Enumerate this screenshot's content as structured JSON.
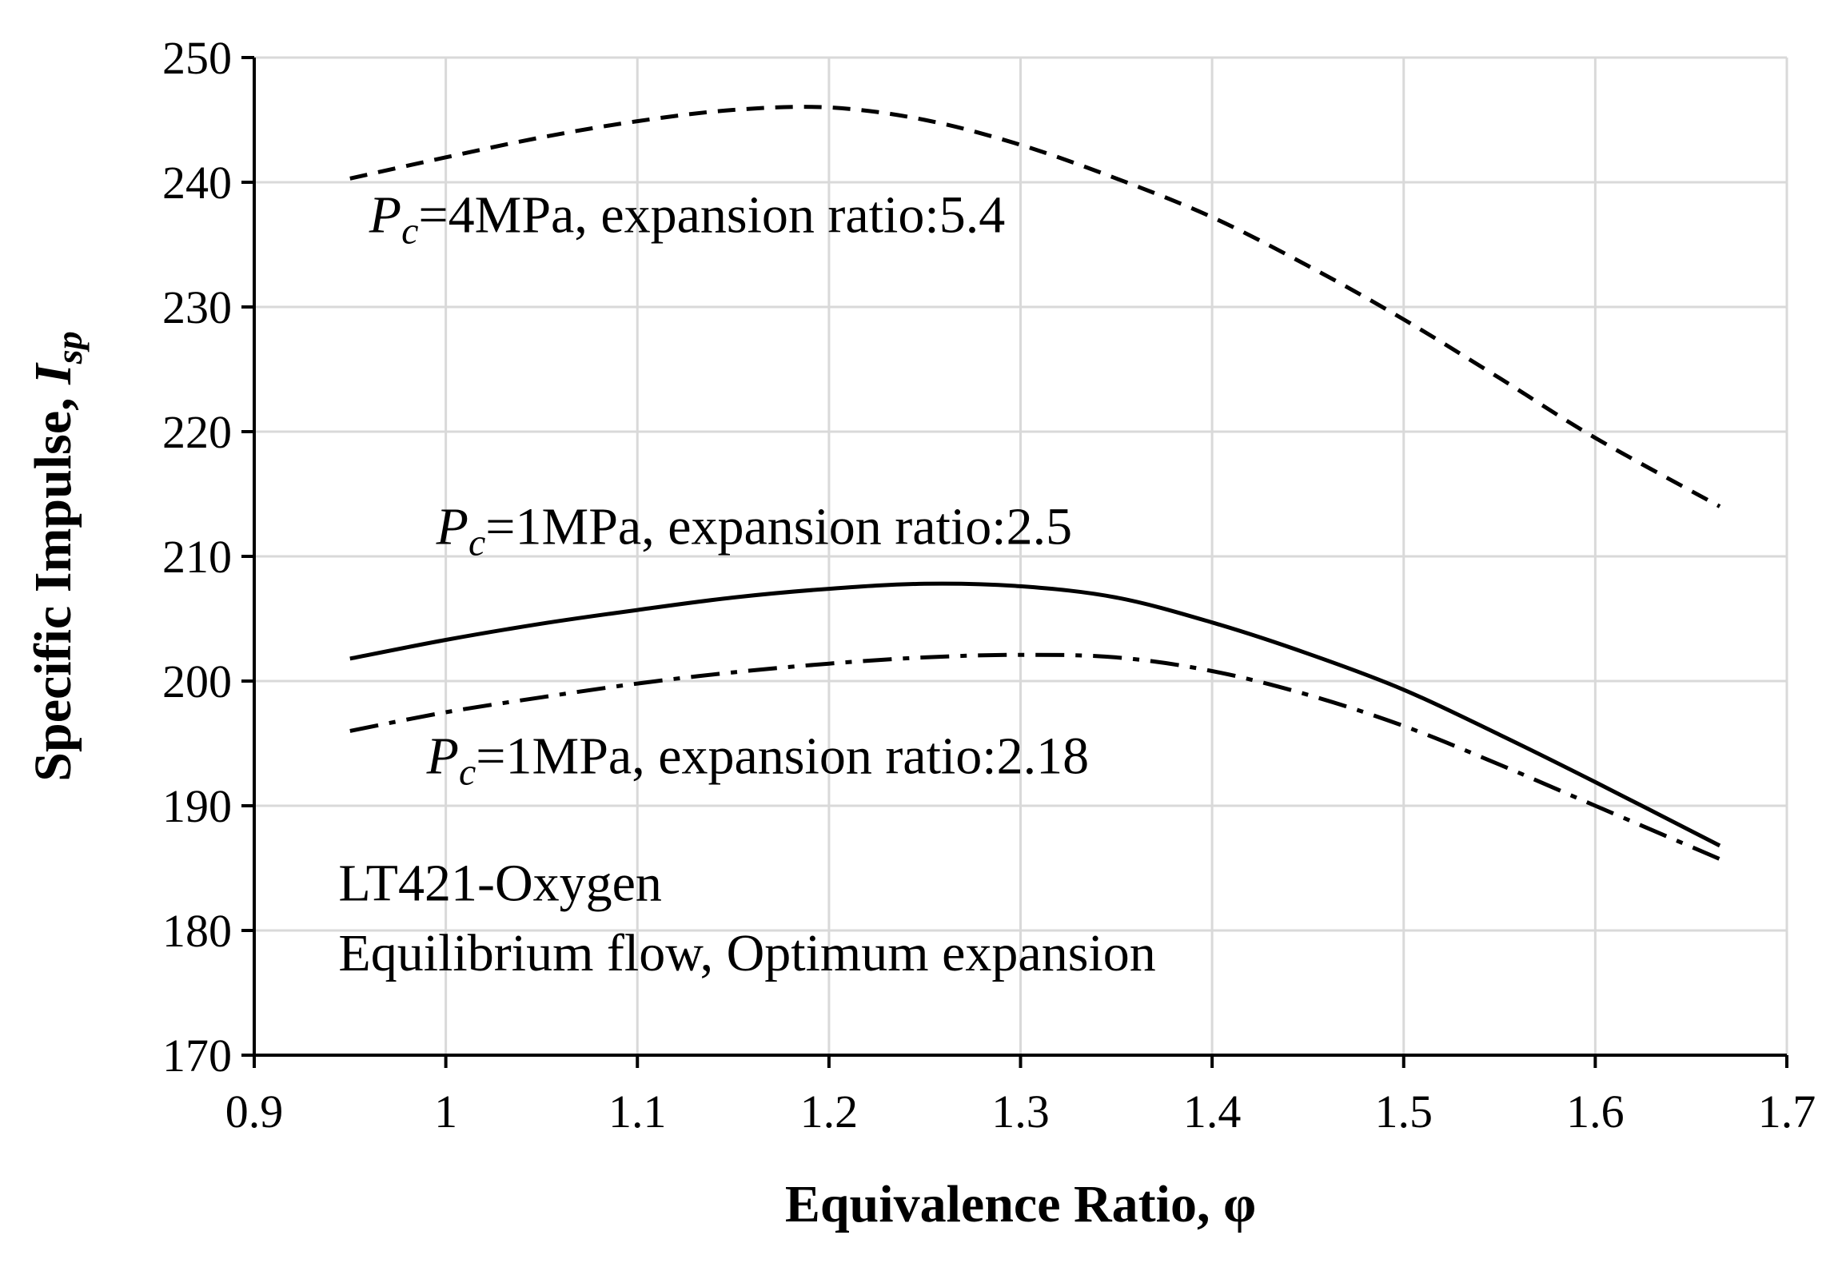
{
  "chart_data": {
    "type": "line",
    "xlabel": "Equivalence Ratio, φ",
    "ylabel": {
      "main": "Specific Impulse, ",
      "symbol": "I",
      "subscript": "sp"
    },
    "xlim": [
      0.9,
      1.7
    ],
    "ylim": [
      170,
      250
    ],
    "xticks": [
      "0.9",
      "1",
      "1.1",
      "1.2",
      "1.3",
      "1.4",
      "1.5",
      "1.6",
      "1.7"
    ],
    "yticks": [
      "170",
      "180",
      "190",
      "200",
      "210",
      "220",
      "230",
      "240",
      "250"
    ],
    "grid": true,
    "series": [
      {
        "name": "Pc=4MPa, expansion ratio:5.4",
        "style": "dashed",
        "x": [
          0.95,
          1.0,
          1.05,
          1.1,
          1.15,
          1.2,
          1.25,
          1.3,
          1.35,
          1.4,
          1.45,
          1.5,
          1.55,
          1.6,
          1.665
        ],
        "y": [
          240.3,
          242.0,
          243.6,
          244.9,
          245.8,
          246.0,
          245.0,
          243.0,
          240.3,
          237.2,
          233.3,
          229.0,
          224.3,
          219.5,
          214.0
        ]
      },
      {
        "name": "Pc=1MPa, expansion ratio:2.5",
        "style": "solid",
        "x": [
          0.95,
          1.0,
          1.05,
          1.1,
          1.15,
          1.2,
          1.25,
          1.3,
          1.35,
          1.4,
          1.45,
          1.5,
          1.55,
          1.6,
          1.665
        ],
        "y": [
          201.8,
          203.3,
          204.6,
          205.7,
          206.7,
          207.4,
          207.8,
          207.6,
          206.7,
          204.7,
          202.2,
          199.3,
          195.7,
          191.9,
          186.8
        ]
      },
      {
        "name": "Pc=1MPa, expansion ratio:2.18",
        "style": "dashdot",
        "x": [
          0.95,
          1.0,
          1.05,
          1.1,
          1.15,
          1.2,
          1.25,
          1.3,
          1.35,
          1.4,
          1.45,
          1.5,
          1.55,
          1.6,
          1.67
        ],
        "y": [
          196.0,
          197.5,
          198.7,
          199.8,
          200.7,
          201.4,
          201.9,
          202.1,
          201.9,
          200.8,
          198.9,
          196.4,
          193.3,
          190.0,
          185.4
        ]
      }
    ],
    "annotations": [
      {
        "id": "anno-4mpa",
        "prefix": "P",
        "sub": "c",
        "text": "=4MPa, expansion ratio:5.4",
        "at": [
          0.96,
          236.0
        ]
      },
      {
        "id": "anno-1mpa-25",
        "prefix": "P",
        "sub": "c",
        "text": "=1MPa, expansion ratio:2.5",
        "at": [
          0.995,
          211.0
        ]
      },
      {
        "id": "anno-1mpa-218",
        "prefix": "P",
        "sub": "c",
        "text": "=1MPa, expansion ratio:2.18",
        "at": [
          0.99,
          192.6
        ]
      },
      {
        "id": "anno-propellant",
        "text": "LT421-Oxygen",
        "at": [
          0.944,
          182.4
        ]
      },
      {
        "id": "anno-conditions",
        "text": "Equilibrium flow, Optimum expansion",
        "at": [
          0.944,
          176.8
        ]
      }
    ]
  }
}
